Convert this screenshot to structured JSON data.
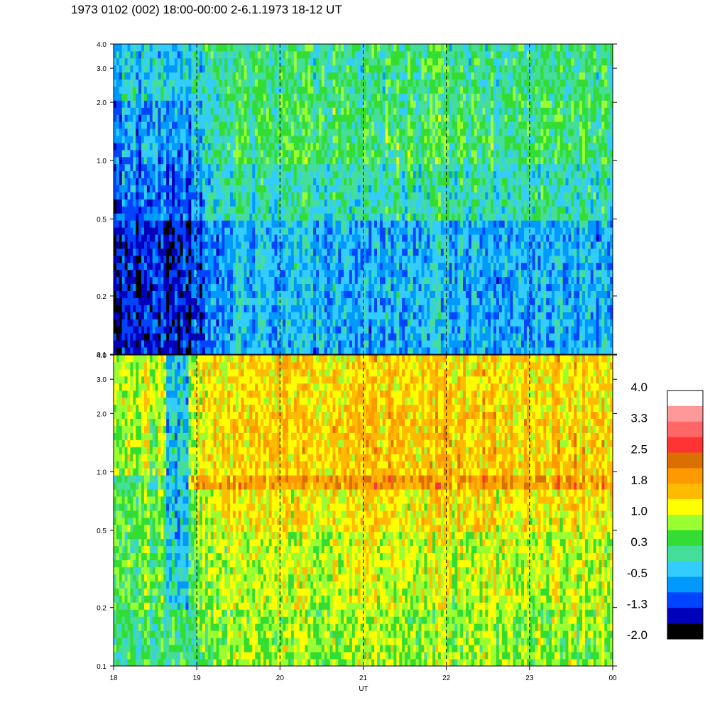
{
  "title": "1973 0102 (002) 18:00-00:00 2-6.1.1973  18-12 UT",
  "chart_data": [
    {
      "type": "heatmap",
      "panel": "upper",
      "x_range": [
        "18:00",
        "00:00"
      ],
      "x_major_ticks_hours": [
        18,
        19,
        20,
        21,
        22,
        23,
        24
      ],
      "dashed_vertical_lines_hours": [
        19,
        20,
        21,
        22,
        23
      ],
      "y_scale": "log",
      "ylim": [
        0.1,
        4.0
      ],
      "y_ticks": [
        {
          "value": 0.1,
          "label": "0.1"
        },
        {
          "value": 0.2,
          "label": "0.2"
        },
        {
          "value": 0.5,
          "label": "0.5"
        },
        {
          "value": 1.0,
          "label": "1.0"
        },
        {
          "value": 2.0,
          "label": "2.0"
        },
        {
          "value": 3.0,
          "label": "3.0"
        },
        {
          "value": 4.0,
          "label": "4.0"
        }
      ],
      "dominant_colors": "blue to green; darkest blue 18-19 UT below 1.0; green above 0.5 after 19 UT",
      "rows": [
        {
          "y_low": 0.1,
          "y_high": 0.2,
          "level_18_19": -1.3,
          "level_19_00": -0.5
        },
        {
          "y_low": 0.2,
          "y_high": 0.5,
          "level_18_19": -1.3,
          "level_19_00": -0.5
        },
        {
          "y_low": 0.5,
          "y_high": 1.0,
          "level_18_19": -0.9,
          "level_19_00": 0.0
        },
        {
          "y_low": 1.0,
          "y_high": 2.0,
          "level_18_19": -0.7,
          "level_19_00": 0.3
        },
        {
          "y_low": 2.0,
          "y_high": 4.0,
          "level_18_19": -0.3,
          "level_19_00": 0.2
        }
      ]
    },
    {
      "type": "heatmap",
      "panel": "lower",
      "x_range": [
        "18:00",
        "00:00"
      ],
      "x_major_ticks_hours": [
        18,
        19,
        20,
        21,
        22,
        23,
        24
      ],
      "dashed_vertical_lines_hours": [
        19,
        20,
        21,
        22,
        23
      ],
      "y_scale": "log",
      "ylim": [
        0.1,
        4.0
      ],
      "y_ticks": [
        {
          "value": 0.1,
          "label": "0.1"
        },
        {
          "value": 0.2,
          "label": "0.2"
        },
        {
          "value": 0.5,
          "label": "0.5"
        },
        {
          "value": 1.0,
          "label": "1.0"
        },
        {
          "value": 2.0,
          "label": "2.0"
        },
        {
          "value": 3.0,
          "label": "3.0"
        },
        {
          "value": 4.0,
          "label": "4.0"
        }
      ],
      "dominant_colors": "yellow to orange; blue-green band 18:40-18:55 UT; dark orange band 0.8-1.0 from 18:55 UT",
      "band": {
        "y_low": 0.8,
        "y_high": 0.97,
        "x_start_hour": 18.9,
        "x_end_hour": 24,
        "level": 1.9
      },
      "gap": {
        "x_start_hour": 18.63,
        "x_end_hour": 18.9,
        "level": -0.3
      },
      "rows": [
        {
          "y_low": 0.1,
          "y_high": 0.2,
          "level_18_19": 0.3,
          "level_19_00": 0.8
        },
        {
          "y_low": 0.2,
          "y_high": 0.5,
          "level_18_19": 0.5,
          "level_19_00": 1.0
        },
        {
          "y_low": 0.5,
          "y_high": 0.8,
          "level_18_19": 0.6,
          "level_19_00": 1.3
        },
        {
          "y_low": 1.0,
          "y_high": 2.0,
          "level_18_19": 0.9,
          "level_19_00": 1.5
        },
        {
          "y_low": 2.0,
          "y_high": 4.0,
          "level_18_19": 1.0,
          "level_19_00": 1.4
        }
      ]
    }
  ],
  "x_axis": {
    "label": "UT",
    "tick_labels": [
      "18",
      "19",
      "20",
      "21",
      "22",
      "23",
      "00"
    ]
  },
  "colorbar": {
    "tick_labels": [
      "4.0",
      "3.3",
      "2.5",
      "1.8",
      "1.0",
      "0.3",
      "-0.5",
      "-1.3",
      "-2.0"
    ],
    "vmin": -2.0,
    "vmax": 4.0,
    "colors_top_to_bottom": [
      "#ffffff",
      "#ff9999",
      "#ff6666",
      "#ff3333",
      "#d97000",
      "#ff9900",
      "#ffbb00",
      "#ffff00",
      "#99ff33",
      "#33dd33",
      "#44dd99",
      "#33ccff",
      "#0099ff",
      "#0044ff",
      "#0000bb",
      "#000000"
    ]
  }
}
